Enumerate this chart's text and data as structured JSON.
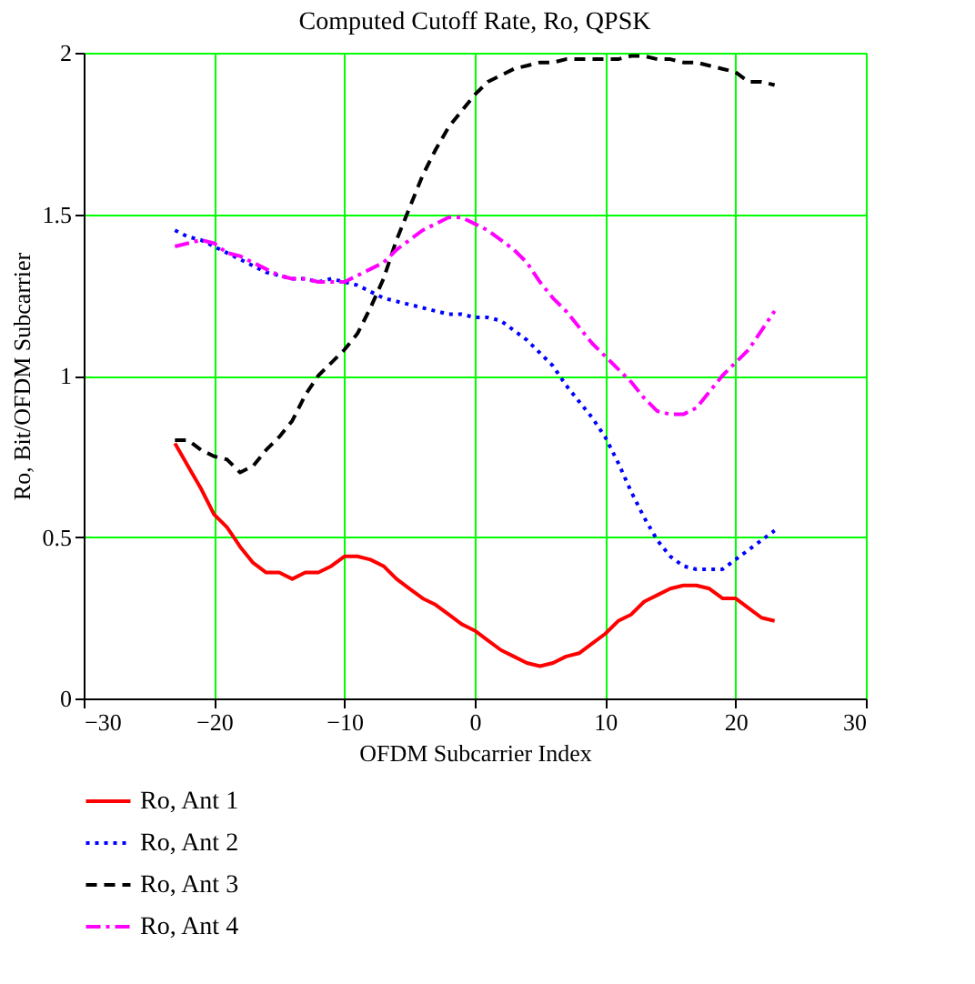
{
  "chart_data": {
    "type": "line",
    "title": "Computed Cutoff Rate, Ro, QPSK",
    "xlabel": "OFDM Subcarrier Index",
    "ylabel": "Ro, Bit/OFDM Subcarrier",
    "x": [
      -23,
      -22,
      -21,
      -20,
      -19,
      -18,
      -17,
      -16,
      -15,
      -14,
      -13,
      -12,
      -11,
      -10,
      -9,
      -8,
      -7,
      -6,
      -5,
      -4,
      -3,
      -2,
      -1,
      0,
      1,
      2,
      3,
      4,
      5,
      6,
      7,
      8,
      9,
      10,
      11,
      12,
      13,
      14,
      15,
      16,
      17,
      18,
      19,
      20,
      21,
      22,
      23
    ],
    "series": [
      {
        "name": "Ro, Ant 1",
        "color": "#ff0000",
        "line_style": "solid",
        "values": [
          0.79,
          0.72,
          0.65,
          0.57,
          0.53,
          0.47,
          0.42,
          0.39,
          0.39,
          0.37,
          0.39,
          0.39,
          0.41,
          0.44,
          0.44,
          0.43,
          0.41,
          0.37,
          0.34,
          0.31,
          0.29,
          0.26,
          0.23,
          0.21,
          0.18,
          0.15,
          0.13,
          0.11,
          0.1,
          0.11,
          0.13,
          0.14,
          0.17,
          0.2,
          0.24,
          0.26,
          0.3,
          0.32,
          0.34,
          0.35,
          0.35,
          0.34,
          0.31,
          0.31,
          0.28,
          0.25,
          0.24
        ]
      },
      {
        "name": "Ro, Ant 2",
        "color": "#0000ff",
        "line_style": "dotted",
        "values": [
          1.45,
          1.43,
          1.42,
          1.4,
          1.38,
          1.36,
          1.34,
          1.32,
          1.31,
          1.3,
          1.3,
          1.29,
          1.3,
          1.29,
          1.28,
          1.26,
          1.24,
          1.23,
          1.22,
          1.21,
          1.2,
          1.19,
          1.19,
          1.18,
          1.18,
          1.17,
          1.14,
          1.11,
          1.07,
          1.03,
          0.97,
          0.92,
          0.87,
          0.81,
          0.73,
          0.64,
          0.56,
          0.49,
          0.44,
          0.41,
          0.4,
          0.4,
          0.4,
          0.43,
          0.46,
          0.49,
          0.52
        ]
      },
      {
        "name": "Ro, Ant 3",
        "color": "#000000",
        "line_style": "dashed",
        "values": [
          0.8,
          0.8,
          0.77,
          0.75,
          0.74,
          0.7,
          0.72,
          0.77,
          0.81,
          0.86,
          0.94,
          1.0,
          1.04,
          1.08,
          1.13,
          1.21,
          1.3,
          1.42,
          1.52,
          1.62,
          1.7,
          1.77,
          1.82,
          1.87,
          1.91,
          1.93,
          1.95,
          1.96,
          1.97,
          1.97,
          1.98,
          1.98,
          1.98,
          1.98,
          1.98,
          1.99,
          1.99,
          1.98,
          1.98,
          1.97,
          1.97,
          1.96,
          1.95,
          1.94,
          1.91,
          1.91,
          1.9
        ]
      },
      {
        "name": "Ro, Ant 4",
        "color": "#ff00ff",
        "line_style": "dashdot",
        "values": [
          1.4,
          1.41,
          1.42,
          1.41,
          1.38,
          1.37,
          1.35,
          1.33,
          1.31,
          1.3,
          1.3,
          1.29,
          1.29,
          1.29,
          1.31,
          1.33,
          1.35,
          1.39,
          1.42,
          1.45,
          1.47,
          1.49,
          1.49,
          1.47,
          1.45,
          1.42,
          1.39,
          1.35,
          1.29,
          1.24,
          1.2,
          1.15,
          1.1,
          1.06,
          1.02,
          0.98,
          0.93,
          0.89,
          0.88,
          0.88,
          0.9,
          0.95,
          1.0,
          1.04,
          1.08,
          1.14,
          1.2
        ]
      }
    ],
    "xlim": [
      -30,
      30
    ],
    "xticks": [
      -30,
      -20,
      -10,
      0,
      10,
      20,
      30
    ],
    "ylim": [
      0,
      2
    ],
    "yticks": [
      0,
      0.5,
      1,
      1.5,
      2
    ],
    "grid": true,
    "legend": "bottom",
    "marker": "none"
  }
}
